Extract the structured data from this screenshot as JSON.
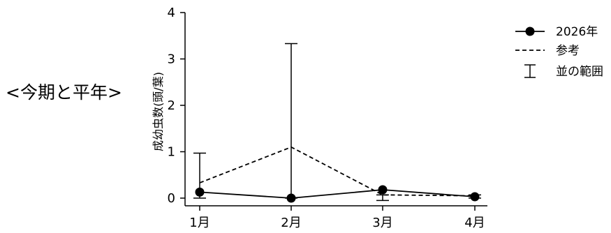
{
  "side_title": "<今期と平年>",
  "chart_data": {
    "type": "line",
    "categories": [
      "1月",
      "2月",
      "3月",
      "4月"
    ],
    "ylabel": "成幼虫数(頭/葉)",
    "ylim": [
      0,
      4
    ],
    "yticks": [
      0,
      1,
      2,
      3,
      4
    ],
    "series": [
      {
        "name": "2026年",
        "values": [
          0.13,
          0.0,
          0.18,
          0.03
        ],
        "style": "solid-marker",
        "color": "#000000"
      },
      {
        "name": "参考",
        "values": [
          0.33,
          1.1,
          0.07,
          0.05
        ],
        "style": "dashed",
        "color": "#000000"
      }
    ],
    "range": {
      "name": "並の範囲",
      "low": [
        0.0,
        0.0,
        -0.05,
        0.0
      ],
      "high": [
        0.97,
        3.33,
        0.07,
        0.07
      ]
    },
    "legend_position": "top-right",
    "grid": false
  }
}
